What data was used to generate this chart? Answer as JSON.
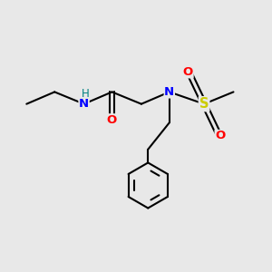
{
  "bg_color": "#e8e8e8",
  "bond_color": "#000000",
  "N_color": "#0000ff",
  "O_color": "#ff0000",
  "S_color": "#cccc00",
  "H_color": "#008080",
  "font_size": 9.5,
  "bond_width": 1.5,
  "figsize": [
    3.0,
    3.0
  ],
  "dpi": 100,
  "xlim": [
    0,
    10
  ],
  "ylim": [
    0,
    10
  ]
}
